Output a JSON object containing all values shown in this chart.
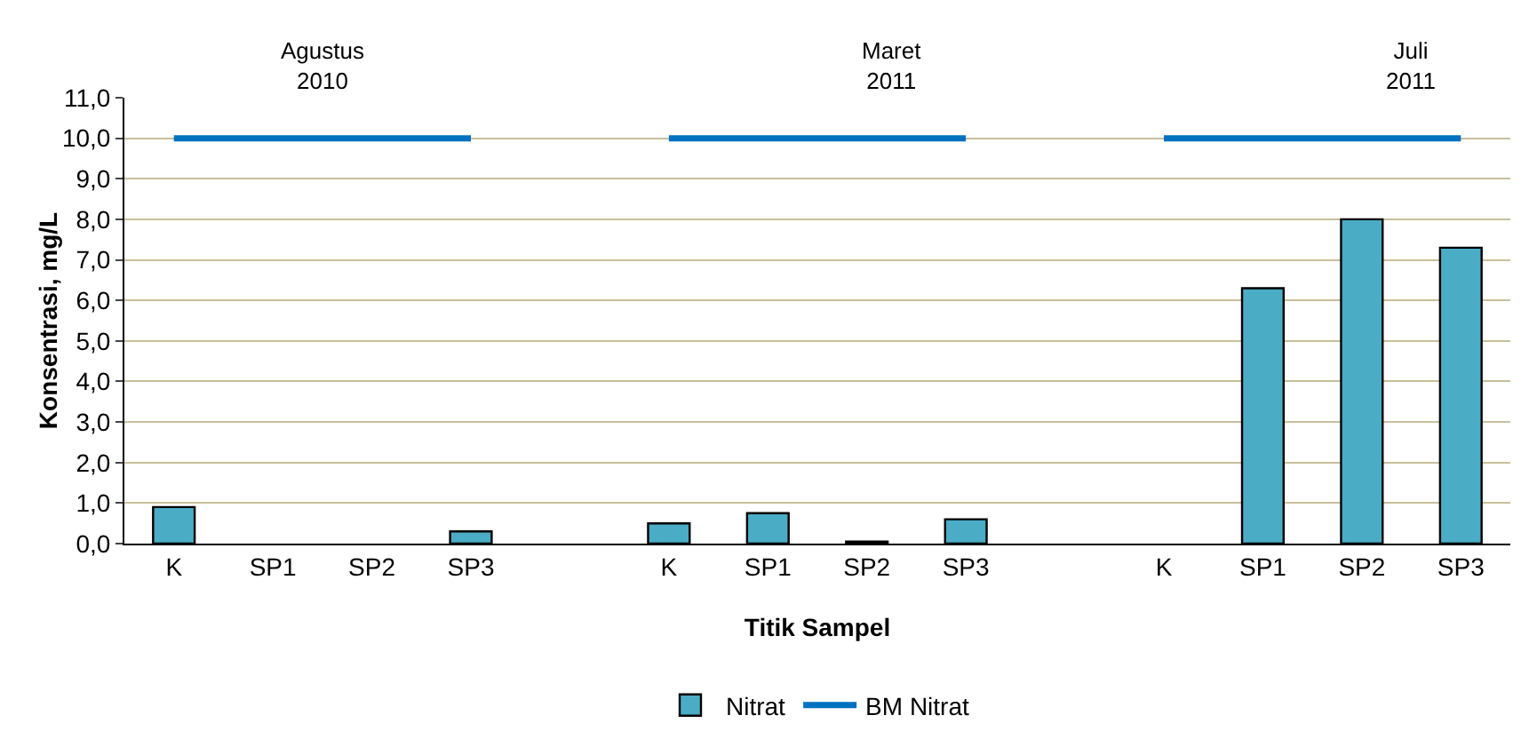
{
  "chart_data": {
    "type": "bar",
    "xlabel": "Titik Sampel",
    "ylabel": "Konsentrasi, mg/L",
    "categories": [
      "K",
      "SP1",
      "SP2",
      "SP3",
      null,
      "K",
      "SP1",
      "SP2",
      "SP3",
      null,
      "K",
      "SP1",
      "SP2",
      "SP3"
    ],
    "series": [
      {
        "name": "Nitrat",
        "color": "#4bacc6",
        "values": [
          0.9,
          0,
          0,
          0.3,
          null,
          0.5,
          0.75,
          0.05,
          0.6,
          null,
          0,
          6.3,
          8.0,
          7.3
        ]
      },
      {
        "name": "BM Nitrat",
        "type": "line",
        "color": "#0070c0",
        "values": [
          10,
          10,
          10,
          10,
          null,
          10,
          10,
          10,
          10,
          null,
          10,
          10,
          10,
          10
        ]
      }
    ],
    "ylim": [
      0,
      11
    ],
    "yticks": [
      {
        "value": 0,
        "label": "0,0"
      },
      {
        "value": 1,
        "label": "1,0"
      },
      {
        "value": 2,
        "label": "2,0"
      },
      {
        "value": 3,
        "label": "3,0"
      },
      {
        "value": 4,
        "label": "4,0"
      },
      {
        "value": 5,
        "label": "5,0"
      },
      {
        "value": 6,
        "label": "6,0"
      },
      {
        "value": 7,
        "label": "7,0"
      },
      {
        "value": 8,
        "label": "8,0"
      },
      {
        "value": 9,
        "label": "9,0"
      },
      {
        "value": 10,
        "label": "10,0"
      },
      {
        "value": 11,
        "label": "11,0"
      }
    ],
    "grid": "y",
    "legend": "bottom",
    "annotations": [
      "Agustus\n2010",
      "Maret\n2011",
      "Juli\n2011"
    ]
  }
}
